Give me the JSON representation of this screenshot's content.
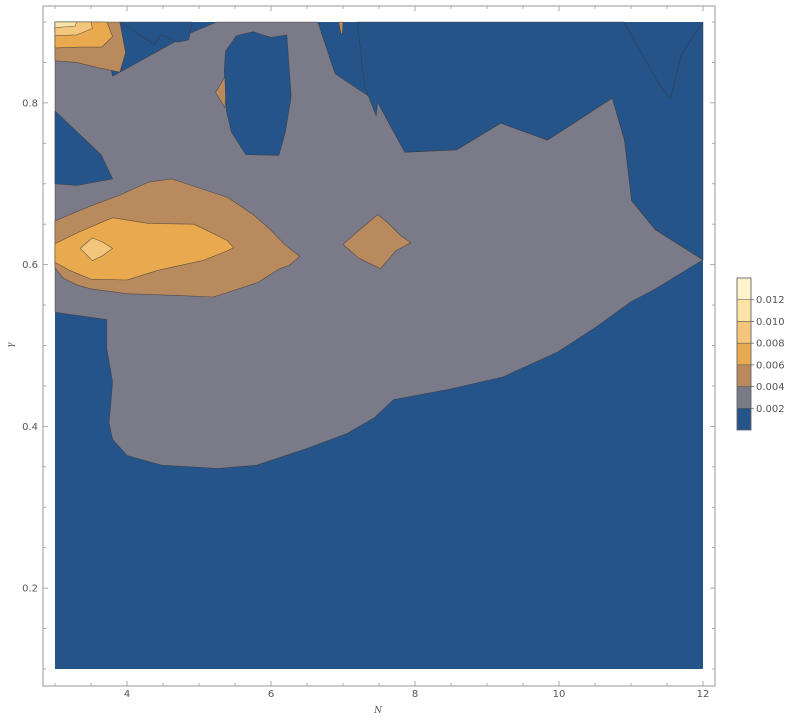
{
  "chart_data": {
    "type": "contour",
    "title": "",
    "xlabel": "N",
    "ylabel": "γ",
    "xlim": [
      3,
      12
    ],
    "ylim": [
      0.1,
      0.9
    ],
    "x_ticks": [
      {
        "value": 4,
        "label": "4"
      },
      {
        "value": 6,
        "label": "6"
      },
      {
        "value": 8,
        "label": "8"
      },
      {
        "value": 10,
        "label": "10"
      },
      {
        "value": 12,
        "label": "12"
      }
    ],
    "y_ticks": [
      {
        "value": 0.2,
        "label": "0.2"
      },
      {
        "value": 0.4,
        "label": "0.4"
      },
      {
        "value": 0.6,
        "label": "0.6"
      },
      {
        "value": 0.8,
        "label": "0.8"
      }
    ],
    "legend": {
      "placement": "right",
      "levels": [
        {
          "label": "0.002",
          "color": "#25548a"
        },
        {
          "label": "0.004",
          "color": "#7b7a89"
        },
        {
          "label": "0.006",
          "color": "#b98a5e"
        },
        {
          "label": "0.008",
          "color": "#e9a94e"
        },
        {
          "label": "0.010",
          "color": "#f3c67c"
        },
        {
          "label": "0.012",
          "color": "#fbe3a6"
        }
      ],
      "top_color": "#fff3cc"
    },
    "bands": [
      {
        "level": 1,
        "color": "#7b7a89",
        "points": [
          [
            3.0,
            0.9
          ],
          [
            3.65,
            0.9
          ],
          [
            3.8,
            0.833
          ],
          [
            4.9,
            0.887
          ],
          [
            5.25,
            0.9
          ],
          [
            6.65,
            0.9
          ],
          [
            6.89,
            0.836
          ],
          [
            7.48,
            0.801
          ],
          [
            7.86,
            0.739
          ],
          [
            8.58,
            0.742
          ],
          [
            9.19,
            0.775
          ],
          [
            9.84,
            0.754
          ],
          [
            10.74,
            0.806
          ],
          [
            10.91,
            0.754
          ],
          [
            11.01,
            0.679
          ],
          [
            11.34,
            0.643
          ],
          [
            12.0,
            0.606
          ],
          [
            11.32,
            0.569
          ],
          [
            11.0,
            0.554
          ],
          [
            10.5,
            0.522
          ],
          [
            9.98,
            0.492
          ],
          [
            9.22,
            0.461
          ],
          [
            8.48,
            0.446
          ],
          [
            7.7,
            0.433
          ],
          [
            7.44,
            0.411
          ],
          [
            7.05,
            0.391
          ],
          [
            6.51,
            0.373
          ],
          [
            5.8,
            0.352
          ],
          [
            5.27,
            0.348
          ],
          [
            4.48,
            0.352
          ],
          [
            4.0,
            0.364
          ],
          [
            3.8,
            0.384
          ],
          [
            3.75,
            0.405
          ],
          [
            3.77,
            0.422
          ],
          [
            3.8,
            0.455
          ],
          [
            3.72,
            0.496
          ],
          [
            3.72,
            0.532
          ],
          [
            3.0,
            0.541
          ]
        ]
      },
      {
        "level": 0,
        "color": "#25548a",
        "points": [
          [
            3.0,
            0.79
          ],
          [
            3.64,
            0.736
          ],
          [
            3.8,
            0.706
          ],
          [
            3.3,
            0.698
          ],
          [
            3.0,
            0.7
          ]
        ]
      },
      {
        "level": 0,
        "color": "#25548a",
        "points": [
          [
            3.9,
            0.9
          ],
          [
            4.38,
            0.872
          ],
          [
            4.48,
            0.884
          ],
          [
            4.7,
            0.875
          ],
          [
            4.86,
            0.878
          ],
          [
            4.9,
            0.9
          ]
        ]
      },
      {
        "level": 0,
        "color": "#25548a",
        "points": [
          [
            5.35,
            0.84
          ],
          [
            5.37,
            0.864
          ],
          [
            5.52,
            0.883
          ],
          [
            5.75,
            0.888
          ],
          [
            6.0,
            0.881
          ],
          [
            6.22,
            0.884
          ],
          [
            6.28,
            0.808
          ],
          [
            6.2,
            0.764
          ],
          [
            6.11,
            0.735
          ],
          [
            5.65,
            0.736
          ],
          [
            5.45,
            0.764
          ],
          [
            5.38,
            0.79
          ]
        ]
      },
      {
        "level": 0,
        "color": "#25548a",
        "points": [
          [
            7.2,
            0.9
          ],
          [
            7.3,
            0.82
          ],
          [
            7.46,
            0.784
          ],
          [
            7.48,
            0.801
          ],
          [
            7.86,
            0.739
          ],
          [
            8.58,
            0.742
          ],
          [
            9.19,
            0.775
          ],
          [
            9.84,
            0.754
          ],
          [
            10.74,
            0.806
          ],
          [
            10.91,
            0.754
          ],
          [
            11.01,
            0.679
          ],
          [
            11.34,
            0.643
          ],
          [
            12.0,
            0.606
          ],
          [
            12.0,
            0.9
          ],
          [
            11.7,
            0.86
          ],
          [
            11.55,
            0.805
          ],
          [
            11.4,
            0.822
          ],
          [
            10.9,
            0.9
          ]
        ]
      },
      {
        "level": 2,
        "color": "#b98a5e",
        "points": [
          [
            3.0,
            0.654
          ],
          [
            3.45,
            0.671
          ],
          [
            3.9,
            0.686
          ],
          [
            4.3,
            0.702
          ],
          [
            4.62,
            0.706
          ],
          [
            5.4,
            0.683
          ],
          [
            5.75,
            0.662
          ],
          [
            5.98,
            0.644
          ],
          [
            6.2,
            0.624
          ],
          [
            6.4,
            0.61
          ],
          [
            6.25,
            0.599
          ],
          [
            6.12,
            0.595
          ],
          [
            5.82,
            0.578
          ],
          [
            5.2,
            0.56
          ],
          [
            4.69,
            0.562
          ],
          [
            4.0,
            0.564
          ],
          [
            3.5,
            0.57
          ],
          [
            3.3,
            0.575
          ],
          [
            3.12,
            0.583
          ],
          [
            3.0,
            0.596
          ]
        ]
      },
      {
        "level": 3,
        "color": "#e9a94e",
        "points": [
          [
            3.0,
            0.626
          ],
          [
            3.35,
            0.641
          ],
          [
            3.8,
            0.658
          ],
          [
            4.3,
            0.651
          ],
          [
            4.93,
            0.65
          ],
          [
            5.39,
            0.63
          ],
          [
            5.48,
            0.621
          ],
          [
            5.39,
            0.617
          ],
          [
            5.05,
            0.605
          ],
          [
            4.43,
            0.593
          ],
          [
            4.0,
            0.581
          ],
          [
            3.5,
            0.582
          ],
          [
            3.2,
            0.593
          ],
          [
            3.0,
            0.603
          ]
        ]
      },
      {
        "level": 4,
        "color": "#f3c67c",
        "points": [
          [
            3.35,
            0.62
          ],
          [
            3.52,
            0.633
          ],
          [
            3.66,
            0.628
          ],
          [
            3.8,
            0.62
          ],
          [
            3.66,
            0.611
          ],
          [
            3.52,
            0.605
          ]
        ]
      },
      {
        "level": 2,
        "color": "#b98a5e",
        "points": [
          [
            7.0,
            0.625
          ],
          [
            7.22,
            0.642
          ],
          [
            7.35,
            0.652
          ],
          [
            7.48,
            0.662
          ],
          [
            7.62,
            0.652
          ],
          [
            7.8,
            0.636
          ],
          [
            7.94,
            0.627
          ],
          [
            7.73,
            0.617
          ],
          [
            7.52,
            0.595
          ],
          [
            7.22,
            0.608
          ]
        ]
      },
      {
        "level": 2,
        "color": "#b98a5e",
        "points": [
          [
            5.23,
            0.813
          ],
          [
            5.36,
            0.832
          ],
          [
            5.37,
            0.806
          ],
          [
            5.36,
            0.794
          ]
        ]
      },
      {
        "level": 2,
        "color": "#b98a5e",
        "points": [
          [
            3.0,
            0.9
          ],
          [
            3.9,
            0.9
          ],
          [
            3.98,
            0.862
          ],
          [
            3.9,
            0.838
          ],
          [
            3.62,
            0.843
          ],
          [
            3.3,
            0.85
          ],
          [
            3.0,
            0.852
          ]
        ]
      },
      {
        "level": 3,
        "color": "#e9a94e",
        "points": [
          [
            3.0,
            0.9
          ],
          [
            3.72,
            0.9
          ],
          [
            3.8,
            0.882
          ],
          [
            3.65,
            0.869
          ],
          [
            3.38,
            0.869
          ],
          [
            3.0,
            0.868
          ]
        ]
      },
      {
        "level": 4,
        "color": "#f3c67c",
        "points": [
          [
            3.0,
            0.9
          ],
          [
            3.5,
            0.9
          ],
          [
            3.52,
            0.892
          ],
          [
            3.3,
            0.884
          ],
          [
            3.0,
            0.883
          ]
        ]
      },
      {
        "level": 5,
        "color": "#fbe3a6",
        "points": [
          [
            3.0,
            0.9
          ],
          [
            3.3,
            0.9
          ],
          [
            3.28,
            0.895
          ],
          [
            3.0,
            0.893
          ]
        ]
      },
      {
        "level": 2,
        "color": "#b98a5e",
        "points": [
          [
            6.94,
            0.9
          ],
          [
            7.0,
            0.9
          ],
          [
            6.99,
            0.885
          ],
          [
            6.97,
            0.886
          ]
        ]
      }
    ]
  }
}
